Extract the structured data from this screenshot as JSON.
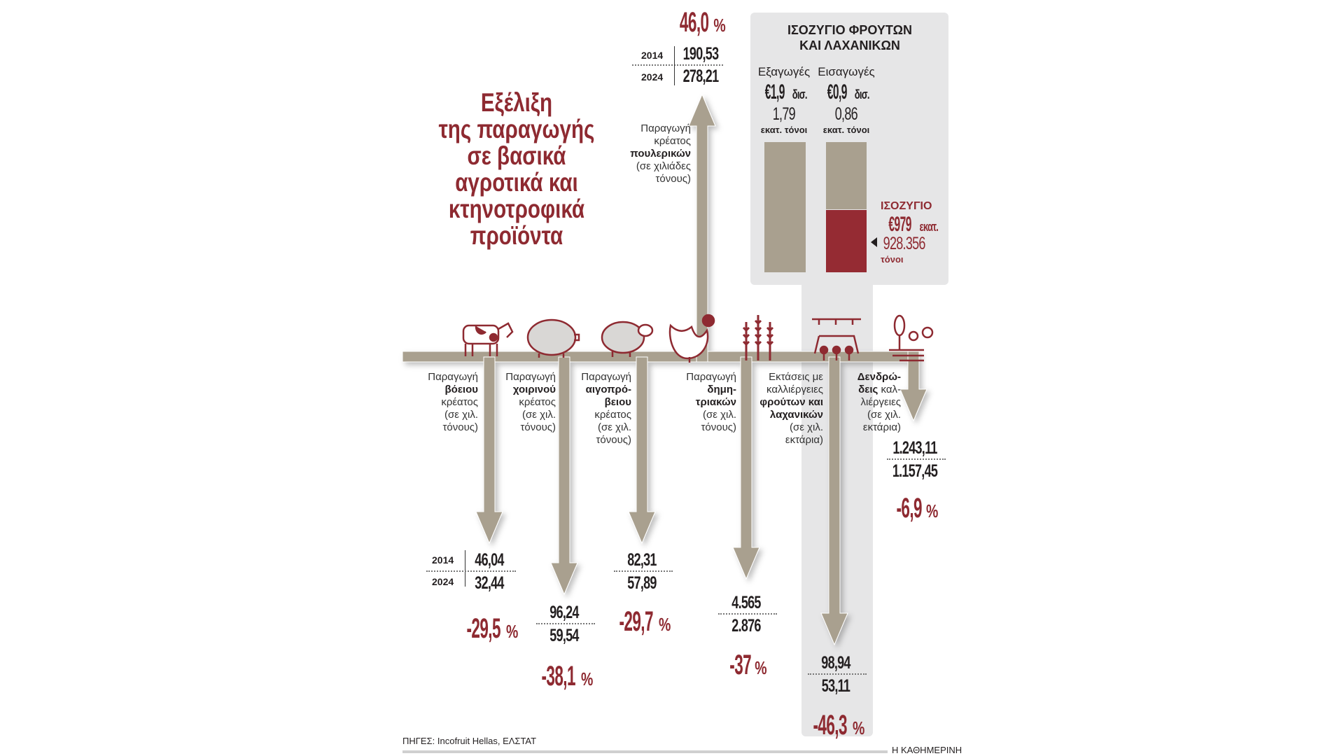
{
  "title_lines": [
    "Εξέλιξη",
    "της παραγωγής",
    "σε βασικά",
    "αγροτικά και",
    "κτηνοτροφικά",
    "προϊόντα"
  ],
  "years": [
    "2014",
    "2024"
  ],
  "poultry": {
    "label_lines": [
      "Παραγωγή",
      "κρέατος"
    ],
    "label_bold": "πουλερικών",
    "label_unit_lines": [
      "(σε χιλιάδες",
      "τόνους)"
    ],
    "v2014": "190,53",
    "v2024": "278,21",
    "change": "46,0",
    "pct": "%"
  },
  "items": [
    {
      "icon": "cow-icon",
      "label_pre": [
        "Παραγωγή"
      ],
      "label_bold": [
        "βόειου"
      ],
      "label_post": [
        "κρέατος",
        "(σε χιλ.",
        "τόνους)"
      ],
      "v2014": "46,04",
      "v2024": "32,44",
      "change": "-29,5"
    },
    {
      "icon": "pig-icon",
      "label_pre": [
        "Παραγωγή"
      ],
      "label_bold": [
        "χοιρινού"
      ],
      "label_post": [
        "κρέατος",
        "(σε χιλ.",
        "τόνους)"
      ],
      "v2014": "96,24",
      "v2024": "59,54",
      "change": "-38,1"
    },
    {
      "icon": "sheep-icon",
      "label_pre": [
        "Παραγωγή"
      ],
      "label_bold": [
        "αιγοπρό-",
        "βειου"
      ],
      "label_post": [
        "κρέατος",
        "(σε χιλ.",
        "τόνους)"
      ],
      "v2014": "82,31",
      "v2024": "57,89",
      "change": "-29,7"
    },
    {
      "icon": "wheat-icon",
      "label_pre": [
        "Παραγωγή"
      ],
      "label_bold": [
        "δημη-",
        "τριακών"
      ],
      "label_post": [
        "(σε χιλ.",
        "τόνους)"
      ],
      "v2014": "4.565",
      "v2024": "2.876",
      "change": "-37"
    },
    {
      "icon": "greenhouse-icon",
      "label_pre": [
        "Εκτάσεις με",
        "καλλιέργειες"
      ],
      "label_bold": [
        "φρούτων και",
        "λαχανικών"
      ],
      "label_post": [
        "(σε χιλ.",
        "εκτάρια)"
      ],
      "v2014": "98,94",
      "v2024": "53,11",
      "change": "-46,3"
    },
    {
      "icon": "trees-icon",
      "label_pre": [],
      "label_bold": [
        "Δενδρώ-",
        "δεις"
      ],
      "label_post": [
        "καλ-",
        "λιέργειες",
        "(σε χιλ.",
        "εκτάρια)"
      ],
      "v2014": "1.243,11",
      "v2024": "1.157,45",
      "change": "-6,9"
    }
  ],
  "panel": {
    "title_lines": [
      "ΙΣΟΖΥΓΙΟ ΦΡΟΥΤΩΝ",
      "ΚΑΙ ΛΑΧΑΝΙΚΩΝ"
    ],
    "exports": {
      "label": "Εξαγωγές",
      "value": "€1,9",
      "value_unit": "δισ.",
      "tons": "1,79",
      "tons_unit": "εκατ. τόνοι"
    },
    "imports": {
      "label": "Εισαγωγές",
      "value": "€0,9",
      "value_unit": "δισ.",
      "tons": "0,86",
      "tons_unit": "εκατ. τόνοι"
    },
    "balance": {
      "label": "ΙΣΟΖΥΓΙΟ",
      "value": "€979",
      "value_unit": "εκατ.",
      "tons": "928.356",
      "tons_unit": "τόνοι"
    }
  },
  "sources": "ΠΗΓΕΣ: Incofruit Hellas, ΕΛΣΤΑΤ",
  "brand": "Η ΚΑΘΗΜΕΡΙΝΗ",
  "colors": {
    "accent": "#8e2a31",
    "arrow": "#a9a08f",
    "panel": "#e6e6e7"
  },
  "chart_data": {
    "type": "table",
    "columns": [
      "2014",
      "2024",
      "change %"
    ],
    "rows": [
      {
        "name": "Παραγωγή κρέατος πουλερικών (σε χιλιάδες τόνους)",
        "2014": 190.53,
        "2024": 278.21,
        "change": 46.0
      },
      {
        "name": "Παραγωγή βόειου κρέατος (σε χιλ. τόνους)",
        "2014": 46.04,
        "2024": 32.44,
        "change": -29.5
      },
      {
        "name": "Παραγωγή χοιρινού κρέατος (σε χιλ. τόνους)",
        "2014": 96.24,
        "2024": 59.54,
        "change": -38.1
      },
      {
        "name": "Παραγωγή αιγοπρόβειου κρέατος (σε χιλ. τόνους)",
        "2014": 82.31,
        "2024": 57.89,
        "change": -29.7
      },
      {
        "name": "Παραγωγή δημητριακών (σε χιλ. τόνους)",
        "2014": 4565,
        "2024": 2876,
        "change": -37
      },
      {
        "name": "Εκτάσεις με καλλιέργειες φρούτων και λαχανικών (σε χιλ. εκτάρια)",
        "2014": 98.94,
        "2024": 53.11,
        "change": -46.3
      },
      {
        "name": "Δενδρώδεις καλλιέργειες (σε χιλ. εκτάρια)",
        "2014": 1243.11,
        "2024": 1157.45,
        "change": -6.9
      }
    ],
    "balance_bars": {
      "exports_bn_eur": 1.9,
      "imports_bn_eur": 0.9,
      "balance_m_eur": 979
    }
  }
}
